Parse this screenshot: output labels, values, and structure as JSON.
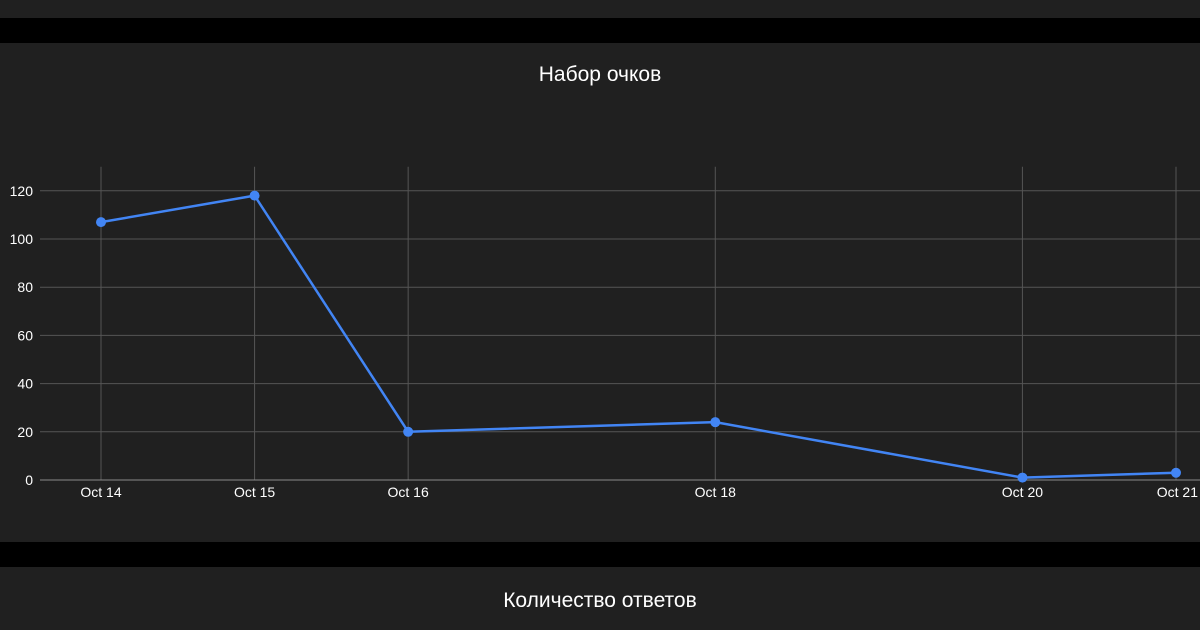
{
  "chart_data": {
    "type": "line",
    "title": "Набор очков",
    "xlabel": "",
    "ylabel": "",
    "x": [
      "Oct 14",
      "Oct 15",
      "Oct 16",
      "Oct 18",
      "Oct 20",
      "Oct 21"
    ],
    "x_day": [
      14,
      15,
      16,
      18,
      20,
      21
    ],
    "series": [
      {
        "values": [
          107,
          118,
          20,
          24,
          1,
          3
        ]
      }
    ],
    "yticks": [
      0,
      20,
      40,
      60,
      80,
      100,
      120
    ],
    "ylim": [
      0,
      130
    ],
    "grid": true,
    "line_color": "#4285f4",
    "grid_color": "#555555"
  },
  "second_chart": {
    "title": "Количество ответов"
  }
}
